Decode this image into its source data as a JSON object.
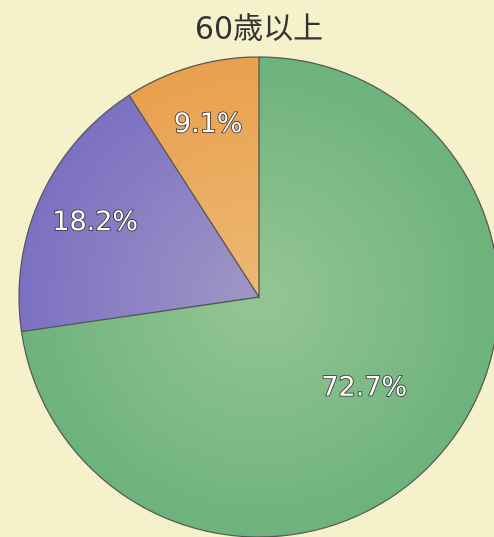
{
  "chart_data": {
    "type": "pie",
    "title": "60歳以上",
    "categories": [
      null,
      null,
      null
    ],
    "values": [
      72.7,
      18.2,
      9.1
    ],
    "value_labels": [
      "72.7%",
      "18.2%",
      "9.1%"
    ],
    "colors": [
      "#6db27c",
      "#7c70c2",
      "#e9a04e"
    ]
  }
}
